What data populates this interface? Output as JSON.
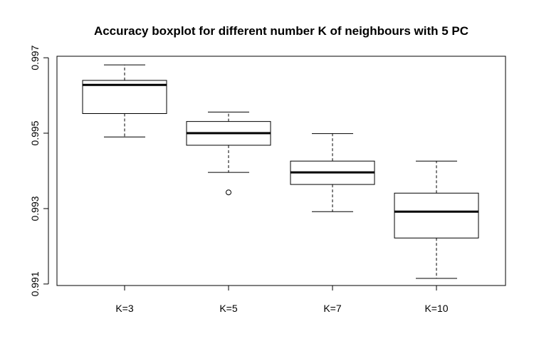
{
  "chart_data": {
    "type": "boxplot",
    "title": "Accuracy boxplot for different number K of neighbours with 5 PC",
    "xlabel": "",
    "ylabel": "",
    "categories": [
      "K=3",
      "K=5",
      "K=7",
      "K=10"
    ],
    "boxes": [
      {
        "category": "K=3",
        "whisker_low": 0.9949,
        "q1": 0.99552,
        "median": 0.99628,
        "q3": 0.9964,
        "whisker_high": 0.99681,
        "outliers": []
      },
      {
        "category": "K=5",
        "whisker_low": 0.99396,
        "q1": 0.99468,
        "median": 0.995,
        "q3": 0.99531,
        "whisker_high": 0.99556,
        "outliers": [
          0.99343
        ]
      },
      {
        "category": "K=7",
        "whisker_low": 0.99292,
        "q1": 0.99364,
        "median": 0.99396,
        "q3": 0.99426,
        "whisker_high": 0.99499,
        "outliers": []
      },
      {
        "category": "K=10",
        "whisker_low": 0.99115,
        "q1": 0.99222,
        "median": 0.99292,
        "q3": 0.99341,
        "whisker_high": 0.99426,
        "outliers": []
      }
    ],
    "y_ticks": [
      0.991,
      0.993,
      0.995,
      0.997
    ],
    "y_tick_labels": [
      "0.991",
      "0.993",
      "0.995",
      "0.997"
    ],
    "ylim": [
      0.99096,
      0.99704
    ],
    "grid": false,
    "legend": "none",
    "colors": {
      "box_fill": "#ffffff",
      "stroke": "#000000"
    }
  }
}
